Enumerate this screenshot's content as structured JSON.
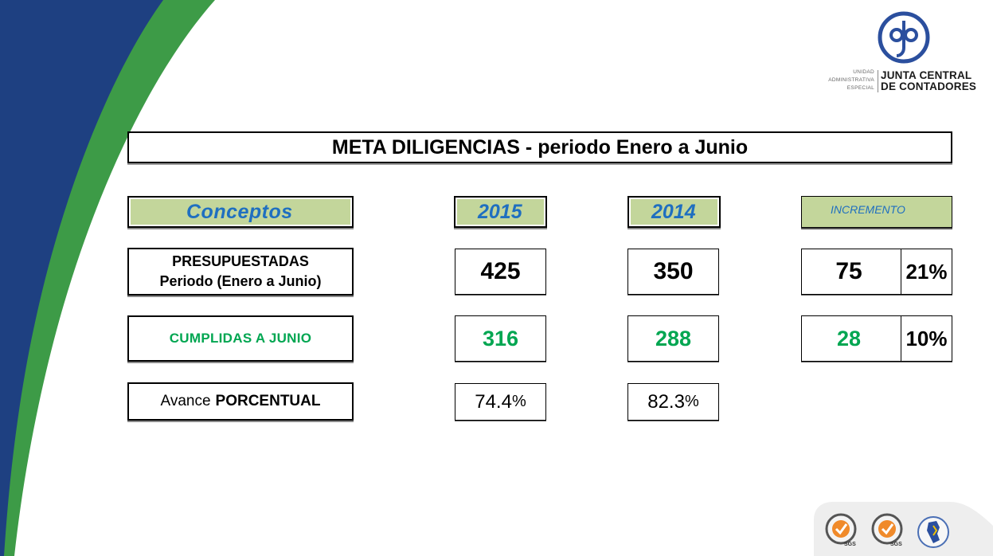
{
  "colors": {
    "brand_blue": "#1e4081",
    "brand_green": "#3d9b47",
    "header_fill": "#c3d69b",
    "header_text": "#1f6fc0",
    "value_green": "#00a651",
    "seal_orange": "#f08a2a"
  },
  "logo": {
    "icon": "jcc-circle-logo",
    "left_lines": [
      "UNIDAD",
      "ADMINISTRATIVA",
      "ESPECIAL"
    ],
    "right_line1": "JUNTA CENTRAL",
    "right_line2": "DE CONTADORES"
  },
  "title": {
    "bold": "META DILIGENCIAS",
    "rest": " - periodo Enero a Junio"
  },
  "headers": {
    "concepts": "Conceptos",
    "year_2015": "2015",
    "year_2014": "2014",
    "increment": "INCREMENTO"
  },
  "rows": {
    "presupuestadas": {
      "line1": "PRESUPUESTADAS",
      "line2": "Periodo (Enero a Junio)",
      "v2015": "425",
      "v2014": "350",
      "increment": "75",
      "increment_pct": "21%"
    },
    "cumplidas": {
      "label": "CUMPLIDAS A JUNIO",
      "v2015": "316",
      "v2014": "288",
      "increment": "28",
      "increment_pct": "10%"
    },
    "avance": {
      "label_normal": "Avance",
      "label_bold": "PORCENTUAL",
      "v2015_num": "74.4",
      "v2014_num": "82.3",
      "pct_sign": "%"
    }
  },
  "seals": {
    "items": [
      {
        "icon": "sgs-certification-seal",
        "text": "SGS"
      },
      {
        "icon": "sgs-certification-seal",
        "text": "SGS"
      },
      {
        "icon": "colombia-map-seal"
      }
    ]
  }
}
